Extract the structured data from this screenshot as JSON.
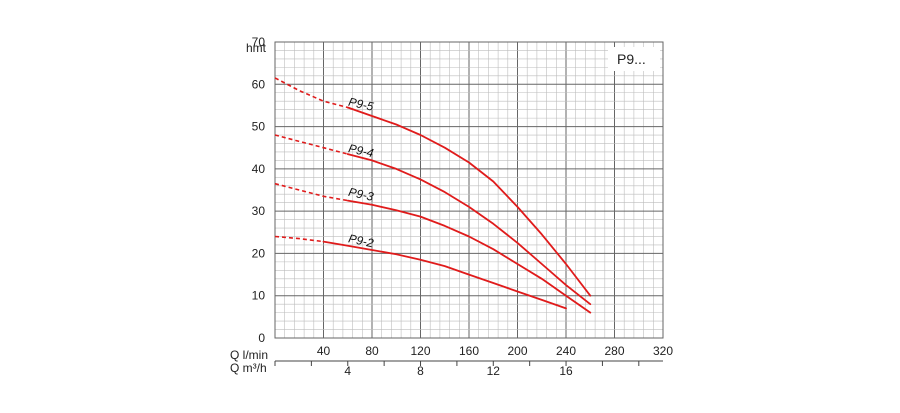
{
  "chart_data": {
    "type": "line",
    "title": "",
    "model_label": "P9...",
    "ylabel": "hmt",
    "xlabel_primary": "Q l/min",
    "xlabel_secondary": "Q m³/h",
    "xlim": [
      0,
      320
    ],
    "ylim": [
      0,
      70
    ],
    "xlim_secondary": [
      0,
      21.33
    ],
    "y_ticks": [
      0,
      10,
      20,
      30,
      40,
      50,
      60,
      70
    ],
    "x_ticks_primary": [
      40,
      80,
      120,
      160,
      200,
      240,
      280,
      320
    ],
    "x_ticks_secondary": [
      4,
      8,
      12,
      16
    ],
    "grid": true,
    "series": [
      {
        "name": "P9-5",
        "dashed_x": [
          0,
          20,
          40,
          60
        ],
        "dashed_y": [
          61.5,
          58.5,
          56,
          54.5
        ],
        "values_x": [
          60,
          80,
          100,
          120,
          140,
          160,
          180,
          200,
          220,
          240,
          260
        ],
        "values_y": [
          54.5,
          52.5,
          50.5,
          48,
          45,
          41.5,
          37,
          31,
          24.5,
          17.5,
          10
        ]
      },
      {
        "name": "P9-4",
        "dashed_x": [
          0,
          20,
          40,
          60
        ],
        "dashed_y": [
          48,
          46.5,
          45,
          43.5
        ],
        "values_x": [
          60,
          80,
          100,
          120,
          140,
          160,
          180,
          200,
          220,
          240,
          260
        ],
        "values_y": [
          43.5,
          42,
          40,
          37.5,
          34.5,
          31,
          27,
          22.5,
          17.5,
          12.5,
          8
        ]
      },
      {
        "name": "P9-3",
        "dashed_x": [
          0,
          20,
          40,
          60
        ],
        "dashed_y": [
          36.5,
          35,
          33.5,
          32.5
        ],
        "values_x": [
          60,
          80,
          100,
          120,
          140,
          160,
          180,
          200,
          220,
          240,
          260
        ],
        "values_y": [
          32.5,
          31.5,
          30.2,
          28.7,
          26.5,
          24,
          21,
          17.5,
          14,
          10,
          6
        ]
      },
      {
        "name": "P9-2",
        "dashed_x": [
          0,
          20,
          40
        ],
        "dashed_y": [
          24,
          23.5,
          22.8
        ],
        "values_x": [
          40,
          60,
          80,
          100,
          120,
          140,
          160,
          180,
          200,
          220,
          240
        ],
        "values_y": [
          22.8,
          21.8,
          20.8,
          19.8,
          18.5,
          17,
          15,
          13,
          11,
          9,
          7
        ]
      }
    ]
  },
  "colors": {
    "curve": "#e01b1b",
    "grid_minor": "#bdbdbd",
    "grid_major": "#666666",
    "label_box": "#ffffff"
  }
}
